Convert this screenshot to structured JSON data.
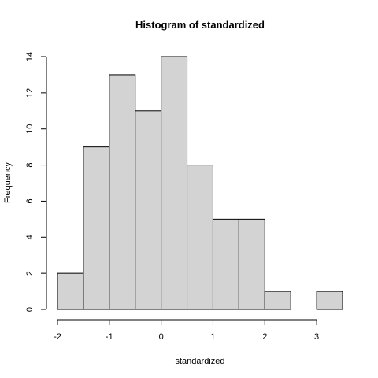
{
  "chart_data": {
    "type": "bar",
    "title": "Histogram of standardized",
    "xlabel": "standardized",
    "ylabel": "Frequency",
    "bins": [
      {
        "start": -2.0,
        "end": -1.5,
        "count": 2
      },
      {
        "start": -1.5,
        "end": -1.0,
        "count": 9
      },
      {
        "start": -1.0,
        "end": -0.5,
        "count": 13
      },
      {
        "start": -0.5,
        "end": 0.0,
        "count": 11
      },
      {
        "start": 0.0,
        "end": 0.5,
        "count": 14
      },
      {
        "start": 0.5,
        "end": 1.0,
        "count": 8
      },
      {
        "start": 1.0,
        "end": 1.5,
        "count": 5
      },
      {
        "start": 1.5,
        "end": 2.0,
        "count": 5
      },
      {
        "start": 2.0,
        "end": 2.5,
        "count": 1
      },
      {
        "start": 2.5,
        "end": 3.0,
        "count": 0
      },
      {
        "start": 3.0,
        "end": 3.5,
        "count": 1
      }
    ],
    "xticks": [
      -2,
      -1,
      0,
      1,
      2,
      3
    ],
    "xtick_labels": [
      "-2",
      "-1",
      "0",
      "1",
      "2",
      "3"
    ],
    "yticks": [
      0,
      2,
      4,
      6,
      8,
      10,
      12,
      14
    ],
    "ytick_labels": [
      "0",
      "2",
      "4",
      "6",
      "8",
      "10",
      "12",
      "14"
    ],
    "xlim": [
      -2.0,
      3.5
    ],
    "ylim": [
      0,
      14
    ],
    "grid": false,
    "bar_color": "#d3d3d3",
    "edge_color": "#000000"
  }
}
